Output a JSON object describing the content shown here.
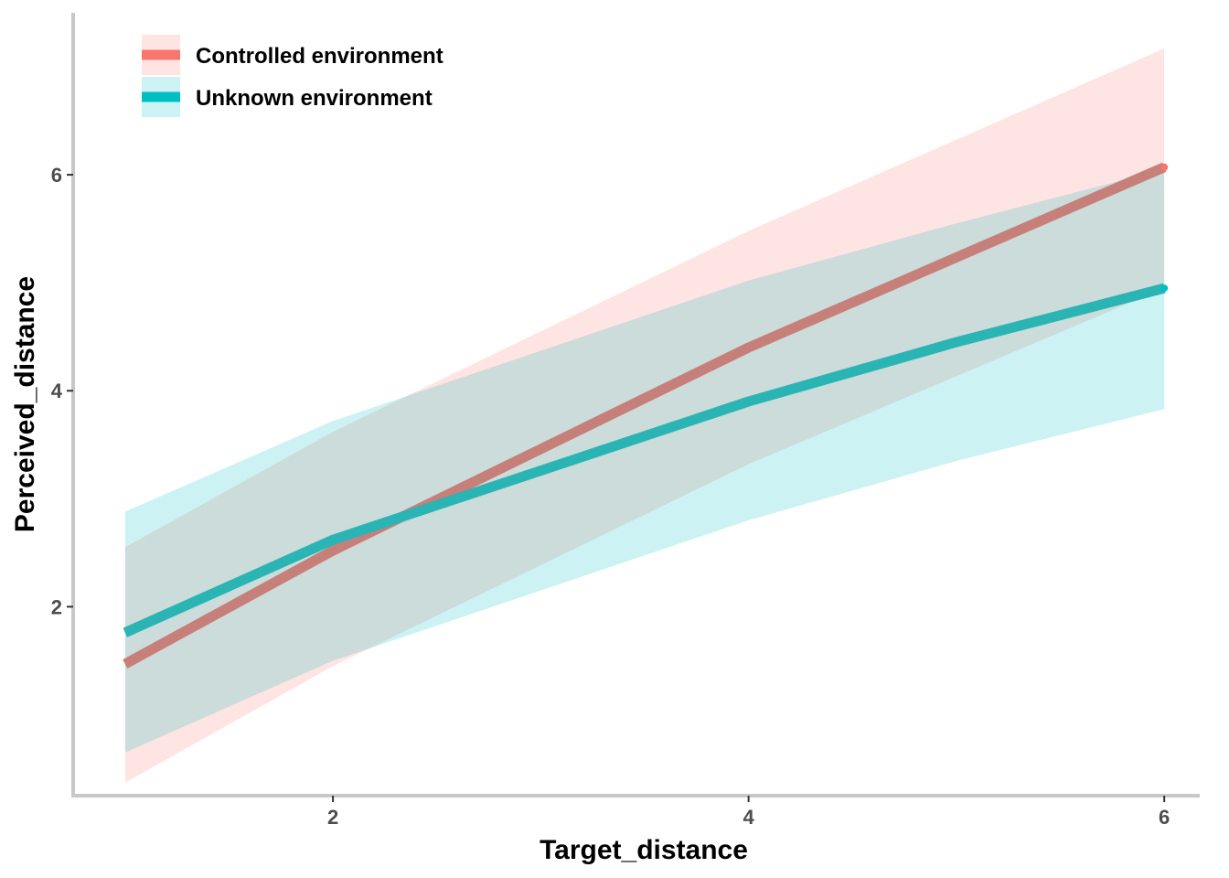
{
  "chart_data": {
    "type": "line",
    "xlabel": "Target_distance",
    "ylabel": "Perceived_distance",
    "xlim": [
      0.75,
      6.25
    ],
    "ylim": [
      0.25,
      7.5
    ],
    "x_ticks": [
      "2",
      "4",
      "6"
    ],
    "y_ticks": [
      "2",
      "4",
      "6"
    ],
    "grid": false,
    "legend_position": "top-left",
    "series": [
      {
        "name": "Controlled environment",
        "color": "#F8766D",
        "line_color": "#C77F7A",
        "x": [
          1,
          2,
          4,
          6
        ],
        "y": [
          1.47,
          2.52,
          4.4,
          6.07
        ],
        "lower": [
          0.37,
          1.45,
          3.32,
          4.95
        ],
        "upper": [
          2.55,
          3.62,
          5.48,
          7.17
        ]
      },
      {
        "name": "Unknown environment",
        "color": "#00BFC4",
        "line_color": "#2BB4B4",
        "x": [
          1,
          2,
          4,
          5,
          6
        ],
        "y": [
          1.76,
          2.62,
          3.9,
          4.45,
          4.95
        ],
        "lower": [
          0.65,
          1.5,
          2.8,
          3.35,
          3.83
        ],
        "upper": [
          2.88,
          3.72,
          5.02,
          5.55,
          6.05
        ]
      }
    ]
  }
}
